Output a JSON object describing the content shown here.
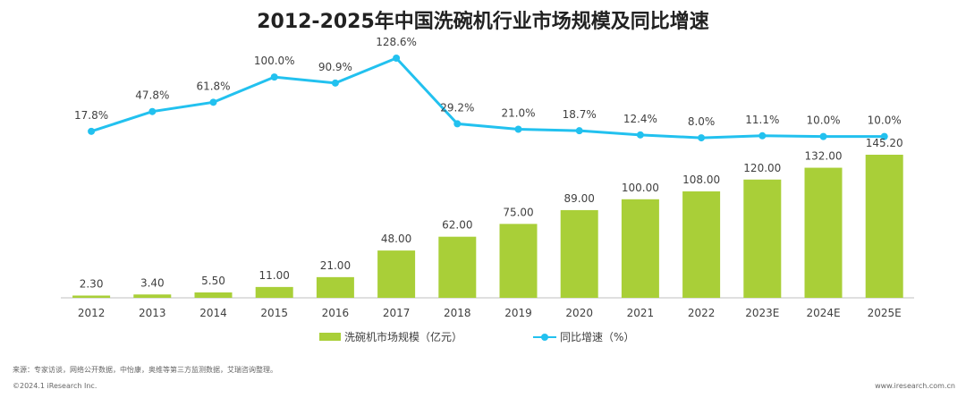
{
  "chart_data": {
    "type": "bar+line",
    "title": "2012-2025年中国洗碗机行业市场规模及同比增速",
    "categories": [
      "2012",
      "2013",
      "2014",
      "2015",
      "2016",
      "2017",
      "2018",
      "2019",
      "2020",
      "2021",
      "2022",
      "2023E",
      "2024E",
      "2025E"
    ],
    "series": [
      {
        "name": "洗碗机市场规模（亿元）",
        "type": "bar",
        "values": [
          2.3,
          3.4,
          5.5,
          11.0,
          21.0,
          48.0,
          62.0,
          75.0,
          89.0,
          100.0,
          108.0,
          120.0,
          132.0,
          145.2
        ],
        "labels": [
          "2.30",
          "3.40",
          "5.50",
          "11.00",
          "21.00",
          "48.00",
          "62.00",
          "75.00",
          "89.00",
          "100.00",
          "108.00",
          "120.00",
          "132.00",
          "145.20"
        ]
      },
      {
        "name": "同比增速（%）",
        "type": "line",
        "values": [
          17.8,
          47.8,
          61.8,
          100.0,
          90.9,
          128.6,
          29.2,
          21.0,
          18.7,
          12.4,
          8.0,
          11.1,
          10.0,
          10.0
        ],
        "labels": [
          "17.8%",
          "47.8%",
          "61.8%",
          "100.0%",
          "90.9%",
          "128.6%",
          "29.2%",
          "21.0%",
          "18.7%",
          "12.4%",
          "8.0%",
          "11.1%",
          "10.0%",
          "10.0%"
        ]
      }
    ],
    "colors": {
      "bar": "#a9cf38",
      "line": "#22c1ef",
      "axis": "#bfbfbf"
    }
  },
  "footer": {
    "source": "来源：专家访谈，网络公开数据，中怡康，奥维等第三方监测数据，艾瑞咨询整理。",
    "copyright": "©2024.1 iResearch Inc.",
    "website": "www.iresearch.com.cn"
  }
}
